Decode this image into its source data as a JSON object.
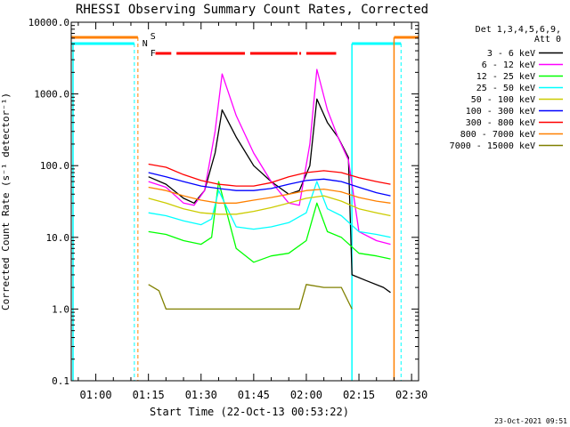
{
  "chart_data": {
    "type": "line",
    "title": "RHESSI Observing Summary Count Rates, Corrected",
    "xlabel": "Start Time (22-Oct-13 00:53:22)",
    "ylabel": "Corrected Count Rate (s⁻¹ detector⁻¹)",
    "yscale": "log",
    "ylim": [
      0.1,
      10000
    ],
    "xlim": [
      "00:53",
      "02:32"
    ],
    "x_ticks": [
      "01:00",
      "01:15",
      "01:30",
      "01:45",
      "02:00",
      "02:15",
      "02:30"
    ],
    "y_ticks": [
      "10000.0",
      "1000.0",
      "100.0",
      "10.0",
      "1.0",
      "0.1"
    ],
    "grid": false,
    "legend_position": "right",
    "legend_header": [
      "Det 1,3,4,5,6,9,",
      "Att 0"
    ],
    "series": [
      {
        "name": "3 - 6 keV",
        "color": "#000000",
        "x": [
          "01:15",
          "01:20",
          "01:25",
          "01:28",
          "01:31",
          "01:34",
          "01:36",
          "01:40",
          "01:45",
          "01:50",
          "01:55",
          "01:58",
          "02:01",
          "02:03",
          "02:06",
          "02:09",
          "02:12",
          "02:13",
          "02:17",
          "02:22",
          "02:24"
        ],
        "y": [
          70,
          55,
          35,
          30,
          45,
          150,
          600,
          250,
          100,
          60,
          40,
          45,
          100,
          850,
          400,
          250,
          130,
          3,
          2.5,
          2,
          1.7
        ]
      },
      {
        "name": "6 - 12 keV",
        "color": "#ff00ff",
        "x": [
          "01:15",
          "01:20",
          "01:25",
          "01:28",
          "01:31",
          "01:34",
          "01:36",
          "01:40",
          "01:45",
          "01:50",
          "01:55",
          "01:58",
          "02:01",
          "02:03",
          "02:06",
          "02:09",
          "02:12",
          "02:15",
          "02:20",
          "02:24"
        ],
        "y": [
          60,
          50,
          30,
          28,
          45,
          300,
          1900,
          500,
          150,
          60,
          30,
          28,
          200,
          2200,
          600,
          250,
          120,
          12,
          9,
          8
        ]
      },
      {
        "name": "12 - 25 keV",
        "color": "#00ff00",
        "x": [
          "01:15",
          "01:20",
          "01:25",
          "01:30",
          "01:33",
          "01:35",
          "01:40",
          "01:45",
          "01:50",
          "01:55",
          "02:00",
          "02:03",
          "02:06",
          "02:10",
          "02:15",
          "02:20",
          "02:24"
        ],
        "y": [
          12,
          11,
          9,
          8,
          10,
          60,
          7,
          4.5,
          5.5,
          6,
          9,
          30,
          12,
          10,
          6,
          5.5,
          5
        ]
      },
      {
        "name": "25 - 50 keV",
        "color": "#00ffff",
        "x": [
          "01:15",
          "01:20",
          "01:25",
          "01:30",
          "01:33",
          "01:35",
          "01:40",
          "01:45",
          "01:50",
          "01:55",
          "02:00",
          "02:03",
          "02:06",
          "02:10",
          "02:15",
          "02:20",
          "02:24"
        ],
        "y": [
          22,
          20,
          17,
          15,
          18,
          45,
          14,
          13,
          14,
          16,
          22,
          60,
          25,
          20,
          12,
          11,
          10
        ]
      },
      {
        "name": "50 - 100 keV",
        "color": "#cccc00",
        "x": [
          "01:15",
          "01:20",
          "01:25",
          "01:30",
          "01:35",
          "01:40",
          "01:45",
          "01:50",
          "01:55",
          "02:00",
          "02:05",
          "02:10",
          "02:15",
          "02:20",
          "02:24"
        ],
        "y": [
          35,
          30,
          25,
          22,
          21,
          21,
          23,
          26,
          30,
          35,
          38,
          32,
          25,
          22,
          20
        ]
      },
      {
        "name": "100 - 300 keV",
        "color": "#0000ff",
        "x": [
          "01:15",
          "01:20",
          "01:25",
          "01:30",
          "01:35",
          "01:40",
          "01:45",
          "01:50",
          "01:55",
          "02:00",
          "02:05",
          "02:10",
          "02:15",
          "02:20",
          "02:24"
        ],
        "y": [
          80,
          70,
          60,
          52,
          48,
          45,
          45,
          48,
          55,
          62,
          65,
          60,
          50,
          42,
          38
        ]
      },
      {
        "name": "300 - 800 keV",
        "color": "#ff0000",
        "x": [
          "01:15",
          "01:20",
          "01:25",
          "01:30",
          "01:35",
          "01:40",
          "01:45",
          "01:50",
          "01:55",
          "02:00",
          "02:05",
          "02:10",
          "02:15",
          "02:20",
          "02:24"
        ],
        "y": [
          105,
          95,
          75,
          62,
          55,
          52,
          52,
          58,
          70,
          80,
          85,
          80,
          68,
          60,
          55
        ]
      },
      {
        "name": "800 - 7000 keV",
        "color": "#ff8000",
        "x": [
          "01:15",
          "01:20",
          "01:25",
          "01:30",
          "01:35",
          "01:40",
          "01:45",
          "01:50",
          "01:55",
          "02:00",
          "02:05",
          "02:10",
          "02:15",
          "02:20",
          "02:24"
        ],
        "y": [
          50,
          45,
          38,
          33,
          30,
          30,
          33,
          36,
          40,
          45,
          47,
          43,
          36,
          32,
          30
        ]
      },
      {
        "name": "7000 - 15000 keV",
        "color": "#808000",
        "x": [
          "01:15",
          "01:18",
          "01:20",
          "01:25",
          "01:30",
          "01:35",
          "01:40",
          "01:45",
          "01:50",
          "01:55",
          "01:58",
          "02:00",
          "02:05",
          "02:10",
          "02:13"
        ],
        "y": [
          2.2,
          1.8,
          1.0,
          1.0,
          1.0,
          1.0,
          1.0,
          1.0,
          1.0,
          1.0,
          1.0,
          2.2,
          2.0,
          2.0,
          1.0
        ]
      }
    ],
    "annotations": {
      "S_label": "S",
      "N_label": "N",
      "F_label": "F",
      "footer_date": "23-Oct-2021 09:51"
    }
  }
}
